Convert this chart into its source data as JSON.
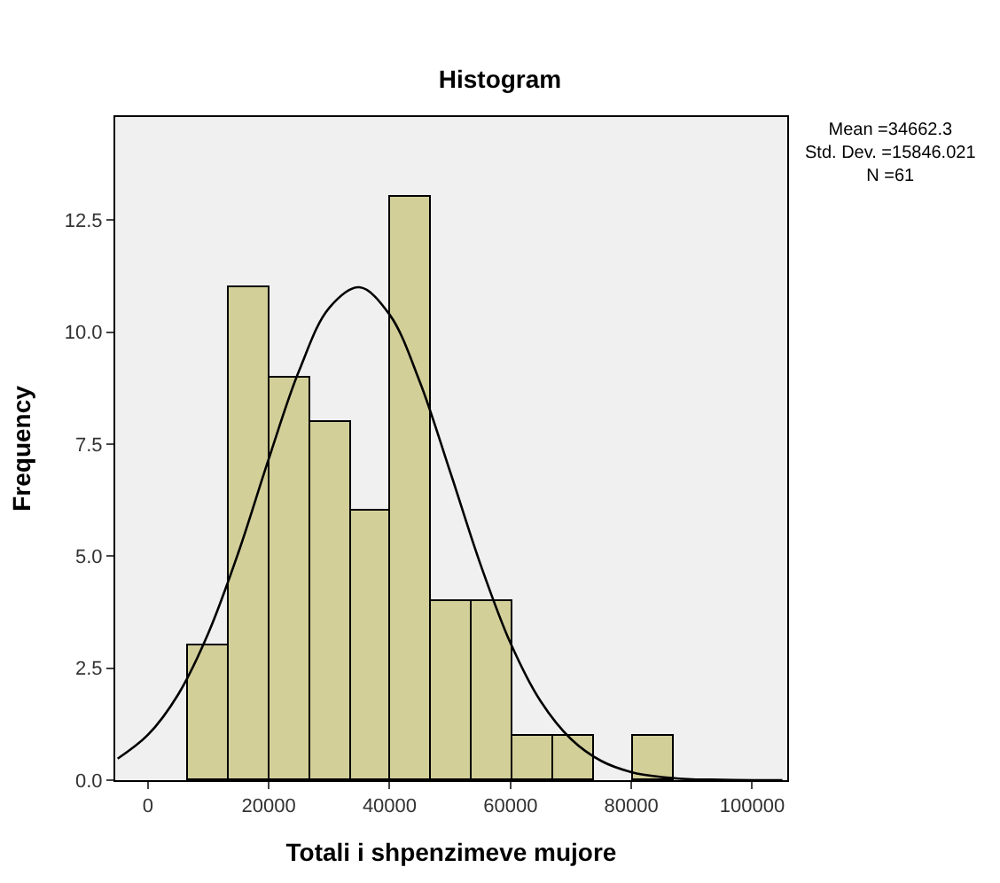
{
  "chart_data": {
    "type": "histogram",
    "title": "Histogram",
    "xlabel": "Totali i shpenzimeve mujore",
    "ylabel": "Frequency",
    "bins": [
      6700,
      13400,
      20100,
      26800,
      33500,
      40200,
      46900,
      53600,
      60300,
      67000,
      73700,
      80400,
      87100
    ],
    "values": [
      3,
      11,
      9,
      8,
      6,
      13,
      4,
      4,
      1,
      1,
      0,
      1
    ],
    "color": "#d3cf99",
    "series": [
      {
        "type": "line",
        "color": "#000000",
        "x": [
          -5000,
          0,
          5000,
          10000,
          15000,
          20000,
          25000,
          30000,
          35000,
          40000,
          45000,
          50000,
          55000,
          60000,
          65000,
          70000,
          75000,
          80000,
          85000,
          90000,
          95000,
          100000,
          105000
        ],
        "values": [
          0.48,
          1.01,
          1.91,
          3.28,
          5.09,
          7.17,
          9.13,
          10.54,
          11.0,
          10.39,
          8.89,
          6.89,
          4.83,
          3.06,
          1.76,
          0.92,
          0.43,
          0.18,
          0.07,
          0.02,
          0.01,
          0,
          0
        ]
      }
    ],
    "xlim": [
      -5400,
      105800
    ],
    "ylim": [
      0,
      14.8
    ],
    "xticks": [
      0,
      20000,
      40000,
      60000,
      80000,
      100000
    ],
    "yticks": [
      {
        "value": 0,
        "label": "0.0"
      },
      {
        "value": 2.5,
        "label": "2.5"
      },
      {
        "value": 5,
        "label": "5.0"
      },
      {
        "value": 7.5,
        "label": "7.5"
      },
      {
        "value": 10,
        "label": "10.0"
      },
      {
        "value": 12.5,
        "label": "12.5"
      }
    ],
    "annotations": [
      "Mean =34662.3",
      "Std. Dev. =15846.021",
      "N =61"
    ],
    "grid": false
  }
}
